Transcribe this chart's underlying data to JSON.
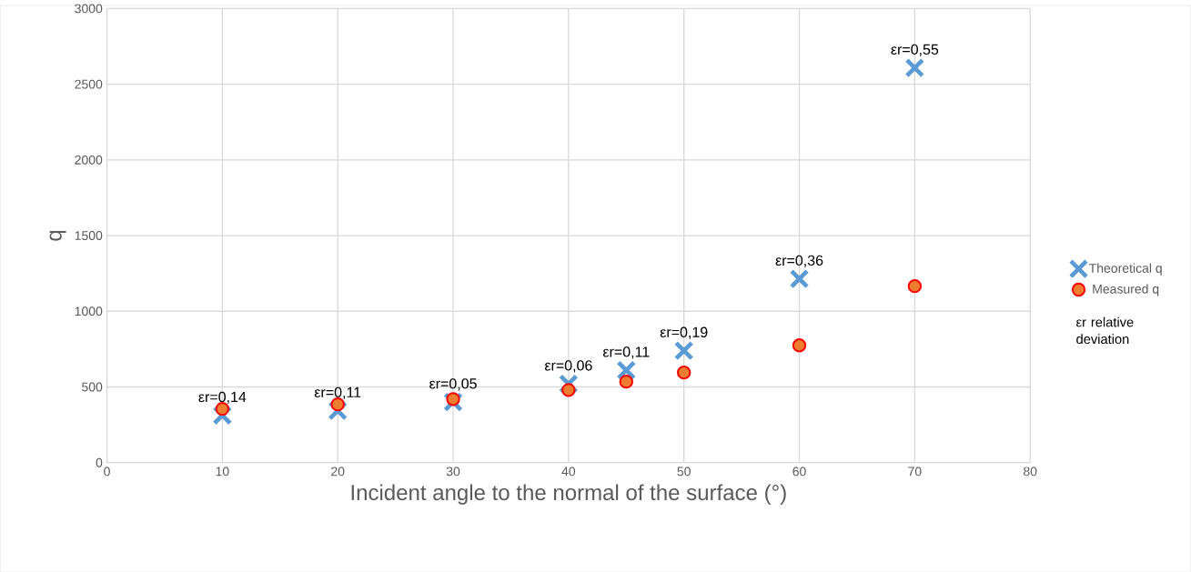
{
  "chart_data": {
    "type": "scatter",
    "xlabel": "Incident angle to the normal of the surface (°)",
    "ylabel": "q",
    "xlim": [
      0,
      80
    ],
    "xticks": [
      0,
      10,
      20,
      30,
      40,
      50,
      60,
      70,
      80
    ],
    "ylim": [
      0,
      3000
    ],
    "yticks": [
      0,
      500,
      1000,
      1500,
      2000,
      2500,
      3000
    ],
    "grid": true,
    "legend": "right",
    "series": [
      {
        "name": "Theoretical q",
        "color": "#5b9bd5",
        "marker": "cross",
        "x": [
          10,
          20,
          30,
          40,
          45,
          50,
          60,
          70
        ],
        "values": [
          312,
          343,
          400,
          520,
          610,
          740,
          1214,
          2608
        ]
      },
      {
        "name": "Measured q",
        "color": "#ed7d31",
        "marker": "circle",
        "x": [
          10,
          20,
          30,
          40,
          45,
          50,
          60,
          70
        ],
        "values": [
          355,
          385,
          420,
          480,
          535,
          595,
          775,
          1166
        ]
      }
    ],
    "annotations": [
      {
        "text": "εr=0,14",
        "x": 10,
        "y": 312
      },
      {
        "text": "εr=0,11",
        "x": 20,
        "y": 343
      },
      {
        "text": "εr=0,05",
        "x": 30,
        "y": 400
      },
      {
        "text": "εr=0,06",
        "x": 40,
        "y": 520
      },
      {
        "text": "εr=0,11",
        "x": 45,
        "y": 610
      },
      {
        "text": "εr=0,19",
        "x": 50,
        "y": 740
      },
      {
        "text": "εr=0,36",
        "x": 60,
        "y": 1214
      },
      {
        "text": "εr=0,55",
        "x": 70,
        "y": 2608
      },
      "εr relative deviation"
    ]
  }
}
